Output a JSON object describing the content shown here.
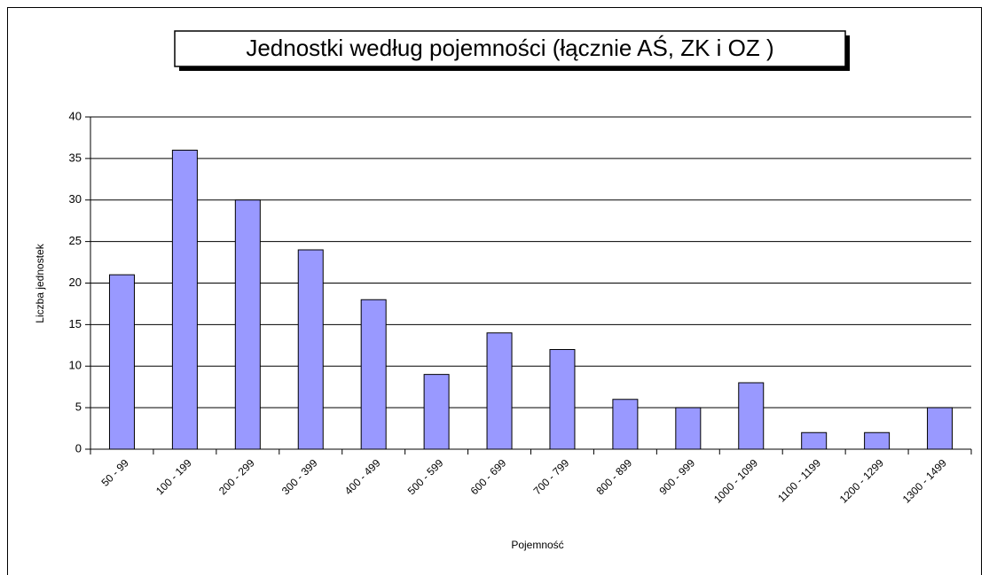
{
  "chart_data": {
    "type": "bar",
    "title": "Jednostki według pojemności (łącznie AŚ, ZK i OZ )",
    "x_label": "Pojemność",
    "y_label": "Liczba jednostek",
    "categories": [
      "50 - 99",
      "100 - 199",
      "200 - 299",
      "300 - 399",
      "400 - 499",
      "500 - 599",
      "600 - 699",
      "700 - 799",
      "800 - 899",
      "900 - 999",
      "1000 - 1099",
      "1100 - 1199",
      "1200 - 1299",
      "1300 - 1499"
    ],
    "values": [
      21,
      36,
      30,
      24,
      18,
      9,
      14,
      12,
      6,
      5,
      8,
      2,
      2,
      5
    ],
    "color": "#9999ff",
    "ylim": [
      0,
      40
    ],
    "yticks": [
      0,
      5,
      10,
      15,
      20,
      25,
      30,
      35,
      40
    ],
    "grid": true
  }
}
